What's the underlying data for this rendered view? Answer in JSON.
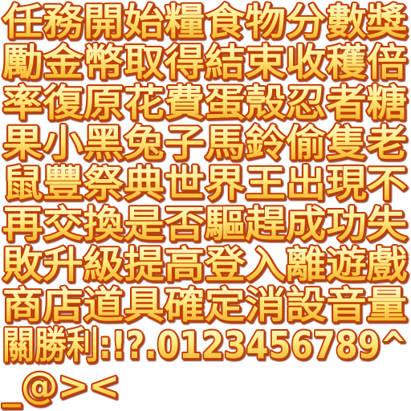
{
  "rows": [
    "任務開始糧食物分數獎",
    "勵金幣取得結束收穫倍",
    "率復原花費蛋殼忍者糖",
    "果小黑兔子馬鈴偷隻老",
    "鼠豐祭典世界王出現不",
    "再交換是否驅趕成功失",
    "敗升級提高登入離遊戲",
    "商店道具確定消設音量",
    "關勝利:!?.0123456789^",
    "_@><"
  ]
}
